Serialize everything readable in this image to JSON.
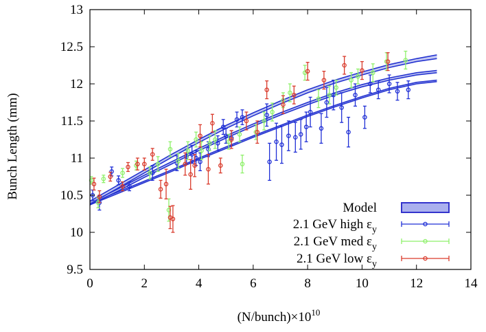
{
  "chart_data": {
    "type": "scatter",
    "title": "",
    "xlabel": "(N/bunch)×10",
    "xlabel_sup": "10",
    "ylabel": "Bunch Length (mm)",
    "xlim": [
      0,
      14
    ],
    "ylim": [
      9.5,
      13
    ],
    "xticks": [
      0,
      2,
      4,
      6,
      8,
      10,
      12,
      14
    ],
    "yticks": [
      9.5,
      10,
      10.5,
      11,
      11.5,
      12,
      12.5,
      13
    ],
    "xtick_labels": [
      "0",
      "2",
      "4",
      "6",
      "8",
      "10",
      "12",
      "14"
    ],
    "ytick_labels": [
      "9.5",
      "10",
      "10.5",
      "11",
      "11.5",
      "12",
      "12.5",
      "13"
    ],
    "grid": false,
    "legend_position": "bottom-right",
    "legend": [
      {
        "label": "Model",
        "symbol": "band",
        "color": "#3333cc"
      },
      {
        "label": "2.1 GeV high",
        "suffix": "ε",
        "suffix_sub": "y",
        "symbol": "errorbar",
        "color": "#1f2fd6"
      },
      {
        "label": "2.1 GeV med",
        "suffix": "ε",
        "suffix_sub": "y",
        "symbol": "errorbar",
        "color": "#8ef06a"
      },
      {
        "label": "2.1 GeV low",
        "suffix": "ε",
        "suffix_sub": "y",
        "symbol": "errorbar",
        "color": "#d93a2b"
      }
    ],
    "model_bands": [
      {
        "name": "high",
        "color": "#2433d0",
        "lower": [
          [
            0,
            10.37
          ],
          [
            1,
            10.52
          ],
          [
            2,
            10.67
          ],
          [
            3,
            10.82
          ],
          [
            4,
            10.98
          ],
          [
            5,
            11.13
          ],
          [
            6,
            11.28
          ],
          [
            7,
            11.42
          ],
          [
            8,
            11.56
          ],
          [
            9,
            11.69
          ],
          [
            10,
            11.81
          ],
          [
            11,
            11.92
          ],
          [
            12,
            12.0
          ],
          [
            12.75,
            12.03
          ]
        ],
        "upper": [
          [
            0,
            10.39
          ],
          [
            1,
            10.54
          ],
          [
            2,
            10.69
          ],
          [
            3,
            10.84
          ],
          [
            4,
            11.0
          ],
          [
            5,
            11.15
          ],
          [
            6,
            11.3
          ],
          [
            7,
            11.44
          ],
          [
            8,
            11.58
          ],
          [
            9,
            11.71
          ],
          [
            10,
            11.83
          ],
          [
            11,
            11.94
          ],
          [
            12,
            12.02
          ],
          [
            12.75,
            12.05
          ]
        ]
      },
      {
        "name": "med",
        "color": "#2433d0",
        "lower": [
          [
            0,
            10.37
          ],
          [
            1,
            10.55
          ],
          [
            2,
            10.74
          ],
          [
            3,
            10.92
          ],
          [
            4,
            11.1
          ],
          [
            5,
            11.27
          ],
          [
            6,
            11.43
          ],
          [
            7,
            11.58
          ],
          [
            8,
            11.72
          ],
          [
            9,
            11.85
          ],
          [
            10,
            11.96
          ],
          [
            11,
            12.05
          ],
          [
            12,
            12.12
          ],
          [
            12.75,
            12.15
          ]
        ],
        "upper": [
          [
            0,
            10.4
          ],
          [
            1,
            10.58
          ],
          [
            2,
            10.77
          ],
          [
            3,
            10.95
          ],
          [
            4,
            11.13
          ],
          [
            5,
            11.3
          ],
          [
            6,
            11.46
          ],
          [
            7,
            11.61
          ],
          [
            8,
            11.75
          ],
          [
            9,
            11.88
          ],
          [
            10,
            11.99
          ],
          [
            11,
            12.08
          ],
          [
            12,
            12.15
          ],
          [
            12.75,
            12.18
          ]
        ]
      },
      {
        "name": "low",
        "color": "#2433d0",
        "lower": [
          [
            0,
            10.38
          ],
          [
            1,
            10.59
          ],
          [
            2,
            10.8
          ],
          [
            3,
            11.01
          ],
          [
            4,
            11.21
          ],
          [
            5,
            11.4
          ],
          [
            6,
            11.57
          ],
          [
            7,
            11.73
          ],
          [
            8,
            11.88
          ],
          [
            9,
            12.01
          ],
          [
            10,
            12.12
          ],
          [
            11,
            12.22
          ],
          [
            12,
            12.3
          ],
          [
            12.75,
            12.34
          ]
        ],
        "upper": [
          [
            0,
            10.42
          ],
          [
            1,
            10.63
          ],
          [
            2,
            10.84
          ],
          [
            3,
            11.05
          ],
          [
            4,
            11.25
          ],
          [
            5,
            11.44
          ],
          [
            6,
            11.61
          ],
          [
            7,
            11.77
          ],
          [
            8,
            11.92
          ],
          [
            9,
            12.05
          ],
          [
            10,
            12.16
          ],
          [
            11,
            12.26
          ],
          [
            12,
            12.34
          ],
          [
            12.75,
            12.39
          ]
        ]
      }
    ],
    "series": [
      {
        "name": "2.1 GeV high",
        "color": "#1f2fd6",
        "points": [
          {
            "x": 0.1,
            "y": 10.5,
            "err": 0.07
          },
          {
            "x": 0.35,
            "y": 10.4,
            "err": 0.1
          },
          {
            "x": 0.8,
            "y": 10.82,
            "err": 0.06
          },
          {
            "x": 1.05,
            "y": 10.7,
            "err": 0.06
          },
          {
            "x": 1.45,
            "y": 10.62,
            "err": 0.06
          },
          {
            "x": 2.3,
            "y": 10.8,
            "err": 0.1
          },
          {
            "x": 3.2,
            "y": 10.93,
            "err": 0.1
          },
          {
            "x": 3.55,
            "y": 11.02,
            "err": 0.1
          },
          {
            "x": 3.75,
            "y": 11.05,
            "err": 0.12
          },
          {
            "x": 3.9,
            "y": 11.0,
            "err": 0.1
          },
          {
            "x": 4.05,
            "y": 10.95,
            "err": 0.12
          },
          {
            "x": 4.35,
            "y": 11.12,
            "err": 0.1
          },
          {
            "x": 4.7,
            "y": 11.2,
            "err": 0.1
          },
          {
            "x": 4.9,
            "y": 11.42,
            "err": 0.1
          },
          {
            "x": 5.0,
            "y": 11.3,
            "err": 0.1
          },
          {
            "x": 5.2,
            "y": 11.27,
            "err": 0.1
          },
          {
            "x": 5.4,
            "y": 11.52,
            "err": 0.1
          },
          {
            "x": 5.6,
            "y": 11.55,
            "err": 0.1
          },
          {
            "x": 6.5,
            "y": 11.58,
            "err": 0.15
          },
          {
            "x": 6.6,
            "y": 10.95,
            "err": 0.25
          },
          {
            "x": 6.85,
            "y": 11.22,
            "err": 0.25
          },
          {
            "x": 7.05,
            "y": 11.18,
            "err": 0.25
          },
          {
            "x": 7.3,
            "y": 11.3,
            "err": 0.2
          },
          {
            "x": 7.55,
            "y": 11.28,
            "err": 0.2
          },
          {
            "x": 7.75,
            "y": 11.32,
            "err": 0.2
          },
          {
            "x": 7.95,
            "y": 11.42,
            "err": 0.2
          },
          {
            "x": 8.1,
            "y": 11.62,
            "err": 0.2
          },
          {
            "x": 8.5,
            "y": 11.4,
            "err": 0.2
          },
          {
            "x": 8.7,
            "y": 11.75,
            "err": 0.2
          },
          {
            "x": 8.95,
            "y": 11.85,
            "err": 0.2
          },
          {
            "x": 9.25,
            "y": 11.68,
            "err": 0.2
          },
          {
            "x": 9.5,
            "y": 11.35,
            "err": 0.2
          },
          {
            "x": 9.75,
            "y": 11.85,
            "err": 0.15
          },
          {
            "x": 10.1,
            "y": 11.55,
            "err": 0.15
          },
          {
            "x": 10.3,
            "y": 12.0,
            "err": 0.12
          },
          {
            "x": 10.6,
            "y": 11.92,
            "err": 0.12
          },
          {
            "x": 11.0,
            "y": 12.0,
            "err": 0.12
          },
          {
            "x": 11.3,
            "y": 11.9,
            "err": 0.12
          },
          {
            "x": 11.7,
            "y": 11.92,
            "err": 0.12
          }
        ]
      },
      {
        "name": "2.1 GeV med",
        "color": "#8ef06a",
        "points": [
          {
            "x": 0.05,
            "y": 10.7,
            "err": 0.05
          },
          {
            "x": 0.3,
            "y": 10.4,
            "err": 0.07
          },
          {
            "x": 0.5,
            "y": 10.72,
            "err": 0.05
          },
          {
            "x": 1.2,
            "y": 10.8,
            "err": 0.06
          },
          {
            "x": 1.7,
            "y": 10.9,
            "err": 0.06
          },
          {
            "x": 2.2,
            "y": 10.8,
            "err": 0.08
          },
          {
            "x": 2.5,
            "y": 10.92,
            "err": 0.1
          },
          {
            "x": 2.9,
            "y": 10.3,
            "err": 0.15
          },
          {
            "x": 2.95,
            "y": 11.12,
            "err": 0.1
          },
          {
            "x": 3.25,
            "y": 10.96,
            "err": 0.1
          },
          {
            "x": 3.6,
            "y": 11.1,
            "err": 0.12
          },
          {
            "x": 3.9,
            "y": 11.25,
            "err": 0.1
          },
          {
            "x": 4.1,
            "y": 11.1,
            "err": 0.12
          },
          {
            "x": 4.4,
            "y": 11.2,
            "err": 0.1
          },
          {
            "x": 4.6,
            "y": 11.25,
            "err": 0.12
          },
          {
            "x": 5.1,
            "y": 11.22,
            "err": 0.1
          },
          {
            "x": 5.5,
            "y": 11.32,
            "err": 0.1
          },
          {
            "x": 5.6,
            "y": 10.92,
            "err": 0.12
          },
          {
            "x": 6.1,
            "y": 11.35,
            "err": 0.1
          },
          {
            "x": 6.4,
            "y": 11.5,
            "err": 0.12
          },
          {
            "x": 6.7,
            "y": 11.62,
            "err": 0.12
          },
          {
            "x": 7.1,
            "y": 11.78,
            "err": 0.1
          },
          {
            "x": 7.35,
            "y": 11.88,
            "err": 0.12
          },
          {
            "x": 7.9,
            "y": 12.15,
            "err": 0.1
          },
          {
            "x": 8.4,
            "y": 11.8,
            "err": 0.12
          },
          {
            "x": 8.8,
            "y": 11.85,
            "err": 0.12
          },
          {
            "x": 9.05,
            "y": 11.95,
            "err": 0.1
          },
          {
            "x": 9.6,
            "y": 12.05,
            "err": 0.1
          },
          {
            "x": 9.85,
            "y": 12.1,
            "err": 0.1
          },
          {
            "x": 10.4,
            "y": 12.15,
            "err": 0.12
          },
          {
            "x": 10.9,
            "y": 12.3,
            "err": 0.12
          },
          {
            "x": 11.6,
            "y": 12.32,
            "err": 0.12
          }
        ]
      },
      {
        "name": "2.1 GeV low",
        "color": "#d93a2b",
        "points": [
          {
            "x": 0.15,
            "y": 10.65,
            "err": 0.08
          },
          {
            "x": 0.35,
            "y": 10.48,
            "err": 0.08
          },
          {
            "x": 0.75,
            "y": 10.75,
            "err": 0.06
          },
          {
            "x": 1.2,
            "y": 10.62,
            "err": 0.06
          },
          {
            "x": 1.4,
            "y": 10.88,
            "err": 0.06
          },
          {
            "x": 1.75,
            "y": 10.92,
            "err": 0.08
          },
          {
            "x": 2.0,
            "y": 10.92,
            "err": 0.08
          },
          {
            "x": 2.3,
            "y": 11.05,
            "err": 0.08
          },
          {
            "x": 2.6,
            "y": 10.58,
            "err": 0.12
          },
          {
            "x": 2.8,
            "y": 10.65,
            "err": 0.2
          },
          {
            "x": 2.95,
            "y": 10.2,
            "err": 0.15
          },
          {
            "x": 3.05,
            "y": 10.18,
            "err": 0.18
          },
          {
            "x": 3.5,
            "y": 10.92,
            "err": 0.15
          },
          {
            "x": 3.7,
            "y": 10.78,
            "err": 0.2
          },
          {
            "x": 3.85,
            "y": 10.9,
            "err": 0.15
          },
          {
            "x": 4.05,
            "y": 11.3,
            "err": 0.15
          },
          {
            "x": 4.35,
            "y": 10.85,
            "err": 0.2
          },
          {
            "x": 4.5,
            "y": 11.47,
            "err": 0.12
          },
          {
            "x": 4.8,
            "y": 10.9,
            "err": 0.1
          },
          {
            "x": 5.2,
            "y": 11.25,
            "err": 0.12
          },
          {
            "x": 5.75,
            "y": 11.5,
            "err": 0.12
          },
          {
            "x": 6.15,
            "y": 11.35,
            "err": 0.15
          },
          {
            "x": 6.5,
            "y": 11.92,
            "err": 0.12
          },
          {
            "x": 7.1,
            "y": 11.72,
            "err": 0.12
          },
          {
            "x": 7.5,
            "y": 11.85,
            "err": 0.12
          },
          {
            "x": 8.0,
            "y": 12.17,
            "err": 0.12
          },
          {
            "x": 8.6,
            "y": 12.05,
            "err": 0.12
          },
          {
            "x": 9.35,
            "y": 12.25,
            "err": 0.12
          },
          {
            "x": 10.0,
            "y": 12.18,
            "err": 0.12
          },
          {
            "x": 10.95,
            "y": 12.3,
            "err": 0.12
          }
        ]
      }
    ]
  }
}
